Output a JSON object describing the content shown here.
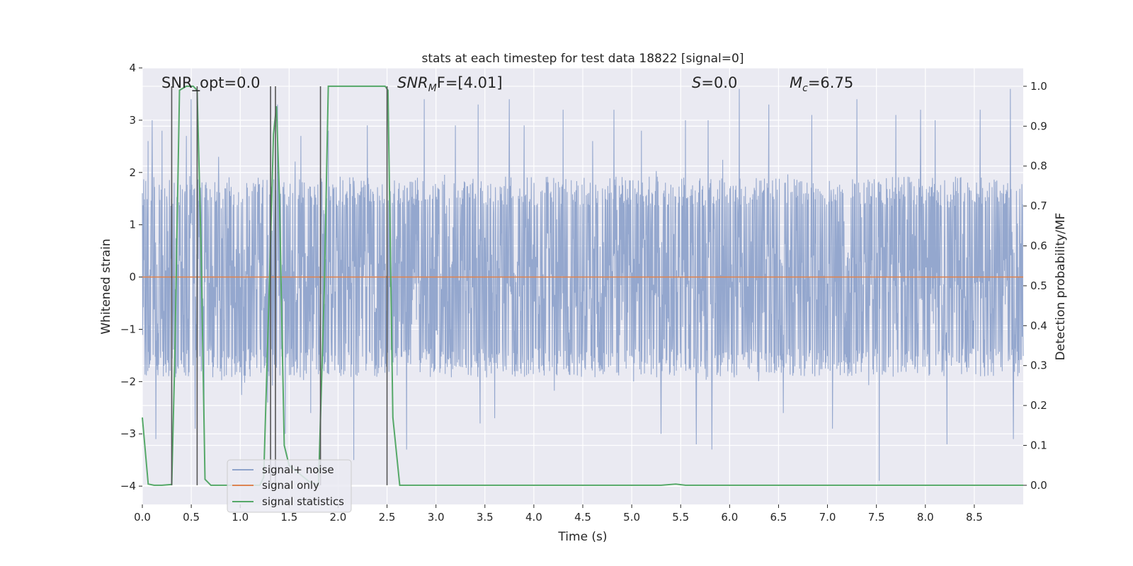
{
  "chart_data": {
    "type": "line",
    "title": "stats at each timestep for test data 18822 [signal=0]",
    "xlabel": "Time (s)",
    "ylabel": "Whitened strain",
    "y2label": "Detection probability/MF",
    "xlim": [
      0,
      9.0
    ],
    "ylim": [
      -4.35,
      4.0
    ],
    "y2lim": [
      -0.048,
      1.046
    ],
    "x_ticks": [
      "0.0",
      "0.5",
      "1.0",
      "1.5",
      "2.0",
      "2.5",
      "3.0",
      "3.5",
      "4.0",
      "4.5",
      "5.0",
      "5.5",
      "6.0",
      "6.5",
      "7.0",
      "7.5",
      "8.0",
      "8.5"
    ],
    "y_ticks": [
      "−4",
      "−3",
      "−2",
      "−1",
      "0",
      "1",
      "2",
      "3",
      "4"
    ],
    "y2_ticks": [
      "0.0",
      "0.1",
      "0.2",
      "0.3",
      "0.4",
      "0.5",
      "0.6",
      "0.7",
      "0.8",
      "0.9",
      "1.0"
    ],
    "grid": true,
    "legend_placement": "lower-left",
    "annotations": {
      "snr_opt": "SNR_opt=0.0",
      "snr_mf_sym": "SNR",
      "snr_mf_sub": "M",
      "snr_mf_rest": "F=[4.01]",
      "s_sym": "S",
      "s_rest": "=0.0",
      "mc_sym": "M",
      "mc_sub": "c",
      "mc_rest": "=6.75"
    },
    "series": [
      {
        "name": "signal+ noise",
        "color": "#8fa3cb",
        "description_kind": "noise_band",
        "typical_amplitude": 1.6,
        "peaks": [
          [
            0.06,
            2.6
          ],
          [
            0.1,
            3.0
          ],
          [
            0.14,
            -3.1
          ],
          [
            0.2,
            2.8
          ],
          [
            0.45,
            2.7
          ],
          [
            0.5,
            3.4
          ],
          [
            0.54,
            -2.9
          ],
          [
            0.63,
            -2.7
          ],
          [
            0.78,
            2.3
          ],
          [
            1.28,
            -2.4
          ],
          [
            1.38,
            3.3
          ],
          [
            1.46,
            -3.0
          ],
          [
            1.62,
            2.7
          ],
          [
            1.72,
            -2.6
          ],
          [
            1.9,
            2.8
          ],
          [
            2.16,
            -3.5
          ],
          [
            2.3,
            2.9
          ],
          [
            2.7,
            -3.3
          ],
          [
            2.88,
            3.4
          ],
          [
            3.2,
            2.9
          ],
          [
            3.43,
            3.3
          ],
          [
            3.45,
            -2.8
          ],
          [
            3.6,
            -2.7
          ],
          [
            3.75,
            3.4
          ],
          [
            3.9,
            2.9
          ],
          [
            4.3,
            3.2
          ],
          [
            4.6,
            2.6
          ],
          [
            4.82,
            3.2
          ],
          [
            5.1,
            2.8
          ],
          [
            5.3,
            -3.0
          ],
          [
            5.55,
            3.0
          ],
          [
            5.66,
            -3.2
          ],
          [
            5.78,
            3.0
          ],
          [
            5.82,
            -3.3
          ],
          [
            6.1,
            3.6
          ],
          [
            6.4,
            3.3
          ],
          [
            6.55,
            -2.6
          ],
          [
            6.84,
            3.1
          ],
          [
            7.05,
            -2.9
          ],
          [
            7.3,
            3.4
          ],
          [
            7.53,
            -3.9
          ],
          [
            7.7,
            3.1
          ],
          [
            7.95,
            3.2
          ],
          [
            8.1,
            3.0
          ],
          [
            8.22,
            -3.2
          ],
          [
            8.56,
            3.2
          ],
          [
            8.87,
            3.6
          ],
          [
            8.9,
            -3.1
          ]
        ]
      },
      {
        "name": "signal only",
        "color": "#dd8452",
        "x": [
          0,
          9.0
        ],
        "y": [
          0,
          0
        ]
      },
      {
        "name": "signal statistics",
        "color": "#55a868",
        "axis": "right",
        "x": [
          0.0,
          0.06,
          0.12,
          0.2,
          0.3,
          0.33,
          0.38,
          0.45,
          0.52,
          0.56,
          0.6,
          0.64,
          0.7,
          0.8,
          1.0,
          1.2,
          1.24,
          1.3,
          1.34,
          1.37,
          1.4,
          1.45,
          1.5,
          1.6,
          1.7,
          1.8,
          1.86,
          1.9,
          2.1,
          2.3,
          2.48,
          2.51,
          2.56,
          2.63,
          3.0,
          4.0,
          5.0,
          5.3,
          5.45,
          5.55,
          6.0,
          7.0,
          8.0,
          9.0
        ],
        "y": [
          0.17,
          0.003,
          0.0,
          0.0,
          0.002,
          0.3,
          0.99,
          1.0,
          1.0,
          0.99,
          0.6,
          0.015,
          0.0,
          0.0,
          0.0,
          0.0,
          0.02,
          0.52,
          0.88,
          0.95,
          0.73,
          0.1,
          0.05,
          0.03,
          0.01,
          0.0,
          0.5,
          1.0,
          1.0,
          1.0,
          1.0,
          0.99,
          0.17,
          0.0,
          0.0,
          0.0,
          0.0,
          0.0,
          0.003,
          0.0,
          0.0,
          0.0,
          0.0,
          0.0
        ]
      }
    ],
    "detection_markers": {
      "color": "#555555",
      "x": [
        0.3,
        0.56,
        1.31,
        1.36,
        1.82,
        2.5
      ]
    }
  }
}
